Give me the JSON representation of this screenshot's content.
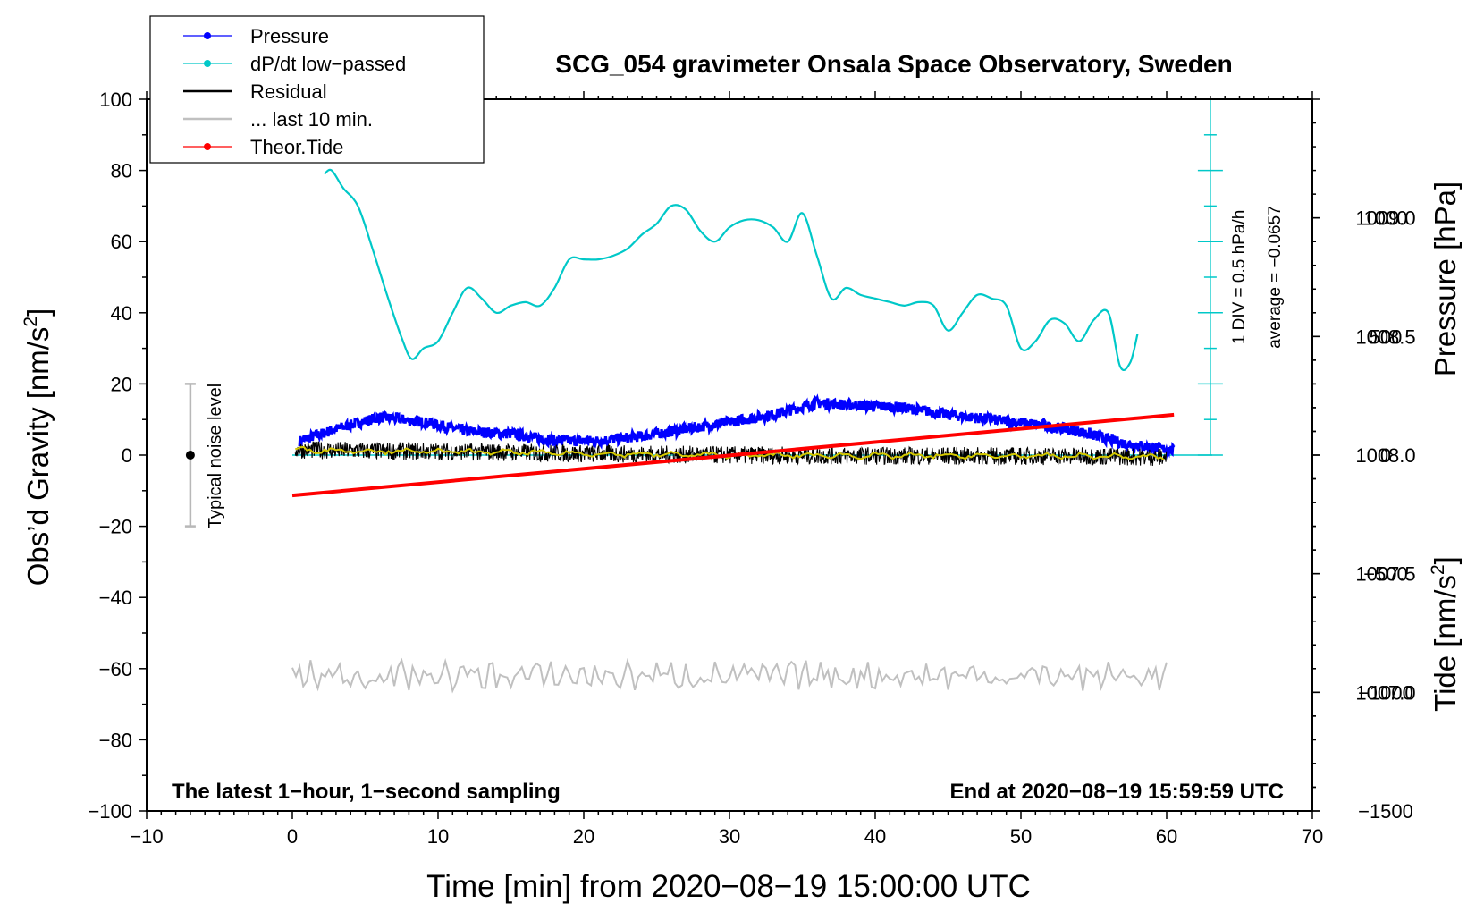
{
  "chart_data": {
    "type": "line",
    "title": "SCG_054 gravimeter Onsala Space Observatory, Sweden",
    "xlabel": "Time [min] from 2020−08−19 15:00:00 UTC",
    "ylabel_left_main": "Obs’d Gravity [nm/s",
    "ylabel_left_sup": "2",
    "ylabel_left_end": "]",
    "ylabel_right_pressure": "Pressure [hPa]",
    "ylabel_right_tide_main": "Tide [nm/s",
    "ylabel_right_tide_sup": "2",
    "ylabel_right_tide_end": "]",
    "xlim": [
      -10,
      70
    ],
    "ylim": [
      -100,
      100
    ],
    "pressure_lim": [
      1006.5,
      1009.5
    ],
    "tide_lim": [
      -1500,
      1500
    ],
    "x_ticks": [
      {
        "value": -10,
        "label": "−10"
      },
      {
        "value": 0,
        "label": "0"
      },
      {
        "value": 10,
        "label": "10"
      },
      {
        "value": 20,
        "label": "20"
      },
      {
        "value": 30,
        "label": "30"
      },
      {
        "value": 40,
        "label": "40"
      },
      {
        "value": 50,
        "label": "50"
      },
      {
        "value": 60,
        "label": "60"
      },
      {
        "value": 70,
        "label": "70"
      }
    ],
    "y_ticks": [
      {
        "value": 100,
        "label": "100"
      },
      {
        "value": 80,
        "label": "80"
      },
      {
        "value": 60,
        "label": "60"
      },
      {
        "value": 40,
        "label": "40"
      },
      {
        "value": 20,
        "label": "20"
      },
      {
        "value": 0,
        "label": "0"
      },
      {
        "value": -20,
        "label": "−20"
      },
      {
        "value": -40,
        "label": "−40"
      },
      {
        "value": -60,
        "label": "−60"
      },
      {
        "value": -80,
        "label": "−80"
      },
      {
        "value": -100,
        "label": "−100"
      }
    ],
    "pressure_ticks": [
      {
        "value": 1009.0,
        "label": "1009.0"
      },
      {
        "value": 1008.5,
        "label": "1008.5"
      },
      {
        "value": 1008.0,
        "label": "1008.0"
      },
      {
        "value": 1007.5,
        "label": "1007.5"
      },
      {
        "value": 1007.0,
        "label": "1007.0"
      }
    ],
    "tide_ticks": [
      {
        "value": 1000,
        "label": "1000"
      },
      {
        "value": 500,
        "label": "500"
      },
      {
        "value": 0,
        "label": "0"
      },
      {
        "value": -500,
        "label": "−500"
      },
      {
        "value": -1000,
        "label": "−1000"
      },
      {
        "value": -1500,
        "label": "−1500"
      }
    ],
    "series": [
      {
        "name": "Pressure",
        "color": "#0000ff",
        "axis": "pressure",
        "x": [
          0.5,
          3,
          6,
          9,
          12,
          15,
          18,
          21,
          24,
          27,
          30,
          33,
          36,
          39,
          42,
          45,
          48,
          51,
          54,
          57,
          60.5
        ],
        "values": [
          1008.06,
          1008.11,
          1008.16,
          1008.14,
          1008.1,
          1008.09,
          1008.06,
          1008.06,
          1008.08,
          1008.11,
          1008.14,
          1008.17,
          1008.22,
          1008.21,
          1008.2,
          1008.17,
          1008.15,
          1008.13,
          1008.1,
          1008.05,
          1008.02
        ]
      },
      {
        "name": "dP/dt low−passed",
        "color": "#00c8c8",
        "axis": "gravity",
        "x": [
          2.2,
          2.7,
          3.5,
          4.5,
          5.5,
          6.5,
          7.5,
          8.2,
          9,
          10,
          11,
          12,
          13,
          14,
          15,
          16,
          17,
          18,
          19,
          20,
          21,
          22,
          23,
          24,
          25,
          26,
          27,
          28,
          29,
          30,
          31,
          32,
          33,
          34,
          35,
          36,
          37,
          38,
          39,
          40,
          41,
          42,
          43,
          44,
          45,
          46,
          47,
          48,
          49,
          50,
          51,
          52,
          53,
          54,
          55,
          56,
          56.8,
          57.5,
          58
        ],
        "values": [
          79,
          80,
          75,
          70,
          58,
          45,
          33,
          27,
          30,
          32,
          40,
          47,
          44,
          40,
          42,
          43,
          42,
          47,
          55,
          55,
          55,
          56,
          58,
          62,
          65,
          70,
          69,
          63,
          60,
          64,
          66,
          66,
          64,
          60,
          68,
          56,
          44,
          47,
          45,
          44,
          43,
          42,
          43,
          42,
          35,
          40,
          45,
          44,
          42,
          30,
          32,
          38,
          37,
          32,
          38,
          40,
          25,
          26,
          34
        ]
      },
      {
        "name": "Residual",
        "color": "#000000",
        "axis": "gravity",
        "x": [
          0.2,
          5,
          10,
          15,
          20,
          25,
          30,
          35,
          40,
          45,
          50,
          55,
          60
        ],
        "values": [
          1.5,
          1.2,
          1.0,
          0.8,
          0.4,
          0.2,
          0.0,
          -0.1,
          -0.2,
          -0.2,
          -0.3,
          -0.3,
          -0.6
        ],
        "noise_amplitude": 2.5
      },
      {
        "name": "... last 10 min.",
        "color": "#c0c0c0",
        "axis": "gravity",
        "x": [
          0,
          60
        ],
        "values": [
          -62,
          -62
        ],
        "noise_amplitude": 3
      },
      {
        "name": "Theor.Tide",
        "color": "#ff0000",
        "axis": "tide",
        "x": [
          0,
          60.5
        ],
        "values": [
          -170,
          170
        ]
      }
    ],
    "annotations": {
      "noise_bar_label": "Typical noise level",
      "noise_bar_x": -7,
      "noise_bar_range": [
        -20,
        20
      ],
      "scale_label_div": "1 DIV = 0.5 hPa/h",
      "scale_label_avg": "average = −0.0657",
      "scale_x": 63,
      "scale_baseline": 1008.0,
      "bottom_left": "The latest 1−hour, 1−second sampling",
      "bottom_right": "End at 2020−08−19 15:59:59 UTC"
    },
    "legend_position": "top-left",
    "legend": [
      {
        "label": "Pressure",
        "color": "#0000ff",
        "marker": true
      },
      {
        "label": "dP/dt low−passed",
        "color": "#00c8c8",
        "marker": true
      },
      {
        "label": "Residual",
        "color": "#000000",
        "marker": false
      },
      {
        "label": "... last 10 min.",
        "color": "#c0c0c0",
        "marker": false
      },
      {
        "label": "Theor.Tide",
        "color": "#ff0000",
        "marker": true
      }
    ]
  }
}
